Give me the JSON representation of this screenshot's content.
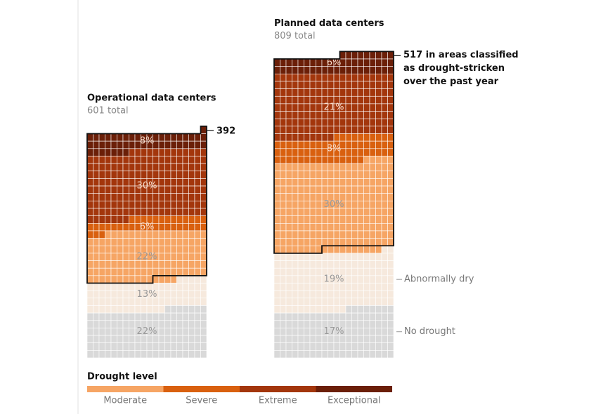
{
  "chart_data": {
    "type": "waffle",
    "categories": [
      "Exceptional",
      "Extreme",
      "Severe",
      "Moderate",
      "Abnormally dry",
      "No drought"
    ],
    "colors": [
      "#6b1f08",
      "#a3360c",
      "#d9600f",
      "#f6a564",
      "#f6e9dd",
      "#d9d9d9"
    ],
    "legend_title": "Drought level",
    "panels": [
      {
        "title": "Operational data centers",
        "subtitle": "601 total",
        "total": 601,
        "drought_count": 392,
        "values": [
          8,
          30,
          6,
          22,
          13,
          22
        ],
        "value_labels": [
          "8%",
          "30%",
          "6%",
          "22%",
          "13%",
          "22%"
        ]
      },
      {
        "title": "Planned data centers",
        "subtitle": "809 total",
        "total": 809,
        "drought_count": 517,
        "annotation": "517 in areas classified as drought-stricken over the past year",
        "values": [
          6,
          21,
          8,
          30,
          19,
          17
        ],
        "value_labels": [
          "6%",
          "21%",
          "8%",
          "30%",
          "19%",
          "17%"
        ]
      }
    ]
  }
}
